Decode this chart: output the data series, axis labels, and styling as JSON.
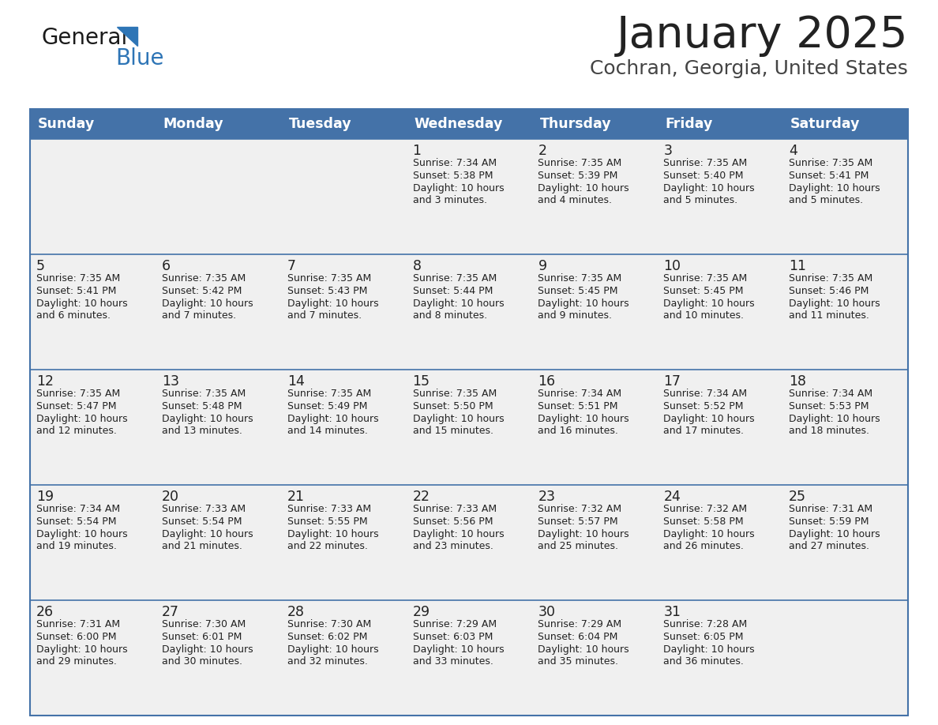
{
  "title": "January 2025",
  "subtitle": "Cochran, Georgia, United States",
  "header_color": "#4472a8",
  "header_text_color": "#ffffff",
  "cell_bg_color": "#f0f0f0",
  "border_color": "#4472a8",
  "title_color": "#222222",
  "subtitle_color": "#444444",
  "day_text_color": "#222222",
  "days_of_week": [
    "Sunday",
    "Monday",
    "Tuesday",
    "Wednesday",
    "Thursday",
    "Friday",
    "Saturday"
  ],
  "weeks": [
    [
      {
        "day": null,
        "sunrise": null,
        "sunset": null,
        "daylight_line1": null,
        "daylight_line2": null
      },
      {
        "day": null,
        "sunrise": null,
        "sunset": null,
        "daylight_line1": null,
        "daylight_line2": null
      },
      {
        "day": null,
        "sunrise": null,
        "sunset": null,
        "daylight_line1": null,
        "daylight_line2": null
      },
      {
        "day": "1",
        "sunrise": "Sunrise: 7:34 AM",
        "sunset": "Sunset: 5:38 PM",
        "daylight_line1": "Daylight: 10 hours",
        "daylight_line2": "and 3 minutes."
      },
      {
        "day": "2",
        "sunrise": "Sunrise: 7:35 AM",
        "sunset": "Sunset: 5:39 PM",
        "daylight_line1": "Daylight: 10 hours",
        "daylight_line2": "and 4 minutes."
      },
      {
        "day": "3",
        "sunrise": "Sunrise: 7:35 AM",
        "sunset": "Sunset: 5:40 PM",
        "daylight_line1": "Daylight: 10 hours",
        "daylight_line2": "and 5 minutes."
      },
      {
        "day": "4",
        "sunrise": "Sunrise: 7:35 AM",
        "sunset": "Sunset: 5:41 PM",
        "daylight_line1": "Daylight: 10 hours",
        "daylight_line2": "and 5 minutes."
      }
    ],
    [
      {
        "day": "5",
        "sunrise": "Sunrise: 7:35 AM",
        "sunset": "Sunset: 5:41 PM",
        "daylight_line1": "Daylight: 10 hours",
        "daylight_line2": "and 6 minutes."
      },
      {
        "day": "6",
        "sunrise": "Sunrise: 7:35 AM",
        "sunset": "Sunset: 5:42 PM",
        "daylight_line1": "Daylight: 10 hours",
        "daylight_line2": "and 7 minutes."
      },
      {
        "day": "7",
        "sunrise": "Sunrise: 7:35 AM",
        "sunset": "Sunset: 5:43 PM",
        "daylight_line1": "Daylight: 10 hours",
        "daylight_line2": "and 7 minutes."
      },
      {
        "day": "8",
        "sunrise": "Sunrise: 7:35 AM",
        "sunset": "Sunset: 5:44 PM",
        "daylight_line1": "Daylight: 10 hours",
        "daylight_line2": "and 8 minutes."
      },
      {
        "day": "9",
        "sunrise": "Sunrise: 7:35 AM",
        "sunset": "Sunset: 5:45 PM",
        "daylight_line1": "Daylight: 10 hours",
        "daylight_line2": "and 9 minutes."
      },
      {
        "day": "10",
        "sunrise": "Sunrise: 7:35 AM",
        "sunset": "Sunset: 5:45 PM",
        "daylight_line1": "Daylight: 10 hours",
        "daylight_line2": "and 10 minutes."
      },
      {
        "day": "11",
        "sunrise": "Sunrise: 7:35 AM",
        "sunset": "Sunset: 5:46 PM",
        "daylight_line1": "Daylight: 10 hours",
        "daylight_line2": "and 11 minutes."
      }
    ],
    [
      {
        "day": "12",
        "sunrise": "Sunrise: 7:35 AM",
        "sunset": "Sunset: 5:47 PM",
        "daylight_line1": "Daylight: 10 hours",
        "daylight_line2": "and 12 minutes."
      },
      {
        "day": "13",
        "sunrise": "Sunrise: 7:35 AM",
        "sunset": "Sunset: 5:48 PM",
        "daylight_line1": "Daylight: 10 hours",
        "daylight_line2": "and 13 minutes."
      },
      {
        "day": "14",
        "sunrise": "Sunrise: 7:35 AM",
        "sunset": "Sunset: 5:49 PM",
        "daylight_line1": "Daylight: 10 hours",
        "daylight_line2": "and 14 minutes."
      },
      {
        "day": "15",
        "sunrise": "Sunrise: 7:35 AM",
        "sunset": "Sunset: 5:50 PM",
        "daylight_line1": "Daylight: 10 hours",
        "daylight_line2": "and 15 minutes."
      },
      {
        "day": "16",
        "sunrise": "Sunrise: 7:34 AM",
        "sunset": "Sunset: 5:51 PM",
        "daylight_line1": "Daylight: 10 hours",
        "daylight_line2": "and 16 minutes."
      },
      {
        "day": "17",
        "sunrise": "Sunrise: 7:34 AM",
        "sunset": "Sunset: 5:52 PM",
        "daylight_line1": "Daylight: 10 hours",
        "daylight_line2": "and 17 minutes."
      },
      {
        "day": "18",
        "sunrise": "Sunrise: 7:34 AM",
        "sunset": "Sunset: 5:53 PM",
        "daylight_line1": "Daylight: 10 hours",
        "daylight_line2": "and 18 minutes."
      }
    ],
    [
      {
        "day": "19",
        "sunrise": "Sunrise: 7:34 AM",
        "sunset": "Sunset: 5:54 PM",
        "daylight_line1": "Daylight: 10 hours",
        "daylight_line2": "and 19 minutes."
      },
      {
        "day": "20",
        "sunrise": "Sunrise: 7:33 AM",
        "sunset": "Sunset: 5:54 PM",
        "daylight_line1": "Daylight: 10 hours",
        "daylight_line2": "and 21 minutes."
      },
      {
        "day": "21",
        "sunrise": "Sunrise: 7:33 AM",
        "sunset": "Sunset: 5:55 PM",
        "daylight_line1": "Daylight: 10 hours",
        "daylight_line2": "and 22 minutes."
      },
      {
        "day": "22",
        "sunrise": "Sunrise: 7:33 AM",
        "sunset": "Sunset: 5:56 PM",
        "daylight_line1": "Daylight: 10 hours",
        "daylight_line2": "and 23 minutes."
      },
      {
        "day": "23",
        "sunrise": "Sunrise: 7:32 AM",
        "sunset": "Sunset: 5:57 PM",
        "daylight_line1": "Daylight: 10 hours",
        "daylight_line2": "and 25 minutes."
      },
      {
        "day": "24",
        "sunrise": "Sunrise: 7:32 AM",
        "sunset": "Sunset: 5:58 PM",
        "daylight_line1": "Daylight: 10 hours",
        "daylight_line2": "and 26 minutes."
      },
      {
        "day": "25",
        "sunrise": "Sunrise: 7:31 AM",
        "sunset": "Sunset: 5:59 PM",
        "daylight_line1": "Daylight: 10 hours",
        "daylight_line2": "and 27 minutes."
      }
    ],
    [
      {
        "day": "26",
        "sunrise": "Sunrise: 7:31 AM",
        "sunset": "Sunset: 6:00 PM",
        "daylight_line1": "Daylight: 10 hours",
        "daylight_line2": "and 29 minutes."
      },
      {
        "day": "27",
        "sunrise": "Sunrise: 7:30 AM",
        "sunset": "Sunset: 6:01 PM",
        "daylight_line1": "Daylight: 10 hours",
        "daylight_line2": "and 30 minutes."
      },
      {
        "day": "28",
        "sunrise": "Sunrise: 7:30 AM",
        "sunset": "Sunset: 6:02 PM",
        "daylight_line1": "Daylight: 10 hours",
        "daylight_line2": "and 32 minutes."
      },
      {
        "day": "29",
        "sunrise": "Sunrise: 7:29 AM",
        "sunset": "Sunset: 6:03 PM",
        "daylight_line1": "Daylight: 10 hours",
        "daylight_line2": "and 33 minutes."
      },
      {
        "day": "30",
        "sunrise": "Sunrise: 7:29 AM",
        "sunset": "Sunset: 6:04 PM",
        "daylight_line1": "Daylight: 10 hours",
        "daylight_line2": "and 35 minutes."
      },
      {
        "day": "31",
        "sunrise": "Sunrise: 7:28 AM",
        "sunset": "Sunset: 6:05 PM",
        "daylight_line1": "Daylight: 10 hours",
        "daylight_line2": "and 36 minutes."
      },
      {
        "day": null,
        "sunrise": null,
        "sunset": null,
        "daylight_line1": null,
        "daylight_line2": null
      }
    ]
  ]
}
